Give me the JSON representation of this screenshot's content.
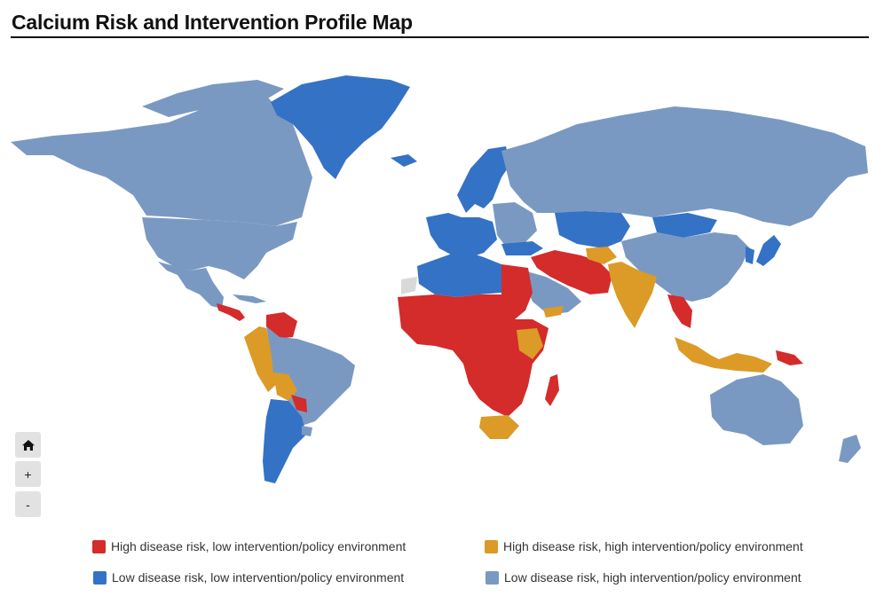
{
  "header": {
    "title": "Calcium Risk and Intervention Profile Map"
  },
  "colors": {
    "high_low": "#d42b2b",
    "high_high": "#dc9a26",
    "low_low": "#3472c6",
    "low_high": "#7a99c2",
    "no_data": "#d9d9d9",
    "ocean": "#ffffff"
  },
  "controls": {
    "home_icon": "home-icon",
    "zoom_in_label": "+",
    "zoom_out_label": "-"
  },
  "legend": {
    "items": [
      {
        "label": "High disease risk, low intervention/policy environment",
        "color": "#d42b2b"
      },
      {
        "label": "High disease risk, high intervention/policy environment",
        "color": "#dc9a26"
      },
      {
        "label": "Low disease risk, low intervention/policy environment",
        "color": "#3472c6"
      },
      {
        "label": "Low disease risk, high intervention/policy environment",
        "color": "#7a99c2"
      }
    ]
  }
}
